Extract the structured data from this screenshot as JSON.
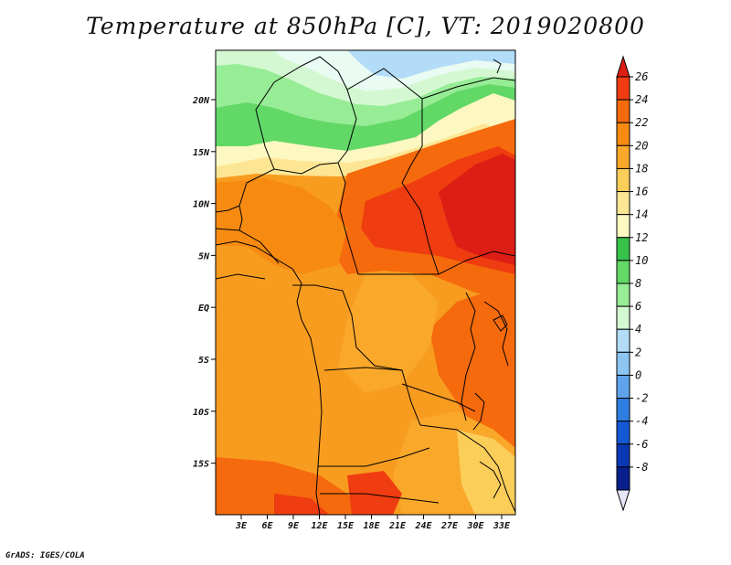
{
  "title": "Temperature at 850hPa [C], VT: 2019020800",
  "credit": "GrADS: IGES/COLA",
  "map": {
    "lat_labels": [
      "20N",
      "15N",
      "10N",
      "5N",
      "EQ",
      "5S",
      "10S",
      "15S"
    ],
    "lon_labels": [
      "3E",
      "6E",
      "9E",
      "12E",
      "15E",
      "18E",
      "21E",
      "24E",
      "27E",
      "30E",
      "33E"
    ]
  },
  "colorbar": {
    "levels": [
      "26",
      "24",
      "22",
      "20",
      "18",
      "16",
      "14",
      "12",
      "10",
      "8",
      "6",
      "4",
      "2",
      "0",
      "-2",
      "-4",
      "-6",
      "-8"
    ],
    "colors": [
      "#dc1e14",
      "#ef3c10",
      "#f56a0c",
      "#f78b12",
      "#f9a82a",
      "#fbce5a",
      "#fde693",
      "#fdf8c2",
      "#37c24a",
      "#62d867",
      "#97ec96",
      "#d4f8d2",
      "#b3dcf8",
      "#8cc4f2",
      "#5ea3ec",
      "#2e7ee2",
      "#1558d4",
      "#0a38b4",
      "#08208c",
      "#e6e6f8"
    ]
  }
}
